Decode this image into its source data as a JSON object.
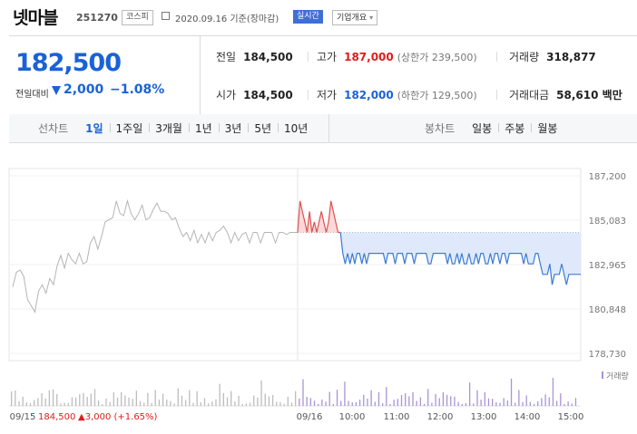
{
  "header": {
    "stock_name": "넷마블",
    "stock_code": "251270",
    "market": "코스피",
    "date_text": "2020.09.16 기준(장마감)",
    "realtime_label": "실시간",
    "company_info_label": "기업개요",
    "dropdown_caret": "▾"
  },
  "summary": {
    "price": "182,500",
    "compare_label": "전일대비",
    "change": "2,000",
    "change_pct": "−1.08%",
    "down_color": "#1a62d6",
    "up_color": "#e21b1b",
    "items": {
      "prev_close": {
        "label": "전일",
        "value": "184,500"
      },
      "high": {
        "label": "고가",
        "value": "187,000",
        "sub": "(상한가 239,500)"
      },
      "volume": {
        "label": "거래량",
        "value": "318,877"
      },
      "open": {
        "label": "시가",
        "value": "184,500"
      },
      "low": {
        "label": "저가",
        "value": "182,000",
        "sub": "(하한가 129,500)"
      },
      "trade_value": {
        "label": "거래대금",
        "value": "58,610 백만"
      }
    }
  },
  "period_bar": {
    "line_label": "선차트",
    "line_periods": [
      "1일",
      "1주일",
      "3개월",
      "1년",
      "3년",
      "5년",
      "10년"
    ],
    "line_selected": "1일",
    "candle_label": "봉차트",
    "candle_periods": [
      "일봉",
      "주봉",
      "월봉"
    ]
  },
  "chart_data": {
    "type": "line",
    "y_ticks": [
      "187,200",
      "185,083",
      "182,965",
      "180,848",
      "178,730"
    ],
    "ylim": [
      178730,
      187200
    ],
    "x_ticks": [
      "09/15",
      "09/16",
      "10:00",
      "11:00",
      "12:00",
      "13:00",
      "14:00",
      "15:00"
    ],
    "prev_close": 184500,
    "prev_day_series": [
      181900,
      182600,
      182700,
      182400,
      181300,
      181000,
      180700,
      181700,
      182000,
      181600,
      182300,
      182000,
      182900,
      183400,
      182800,
      183500,
      183200,
      183000,
      183500,
      183000,
      183100,
      184000,
      184300,
      183700,
      184300,
      185000,
      185100,
      185200,
      186000,
      185400,
      185300,
      186000,
      185400,
      185100,
      185400,
      185800,
      185100,
      185200,
      185600,
      185900,
      185500,
      185500,
      185400,
      185100,
      185200,
      184700,
      184300,
      184500,
      184100,
      184600,
      184000,
      184400,
      184000,
      184500,
      184100,
      184500,
      184600,
      184800,
      184500,
      184000,
      184500,
      184100,
      184400,
      184500,
      184000,
      184500,
      184500,
      184000,
      184500,
      184500,
      184500,
      184000,
      184500,
      184500,
      184400,
      184500,
      184500,
      184500
    ],
    "today_series": [
      184500,
      186000,
      185500,
      185000,
      184500,
      185500,
      184500,
      185000,
      184500,
      185000,
      185500,
      185000,
      184500,
      185000,
      186000,
      185500,
      185000,
      184500,
      184500,
      183500,
      183000,
      183500,
      183000,
      183500,
      183000,
      183500,
      183500,
      183000,
      183500,
      183000,
      183500,
      183500,
      183500,
      183500,
      183500,
      183500,
      183500,
      183000,
      183500,
      183500,
      183500,
      183000,
      183500,
      183500,
      183500,
      183000,
      183500,
      183500,
      183500,
      183000,
      183500,
      183500,
      183500,
      183500,
      183500,
      183000,
      183000,
      183500,
      183500,
      183500,
      183500,
      183500,
      183500,
      183000,
      183500,
      183000,
      183000,
      183500,
      183000,
      183500,
      183000,
      183000,
      183500,
      183000,
      183000,
      183500,
      183000,
      183500,
      183500,
      183000,
      183000,
      183500,
      183000,
      183500,
      183500,
      183000,
      183500,
      183500,
      183000,
      183500,
      183500,
      183500,
      183500,
      183500,
      183500,
      183000,
      183500,
      183000,
      183000,
      183000,
      183500,
      183500,
      183000,
      182500,
      182500,
      182500,
      183000,
      182000,
      182500,
      182500,
      182500,
      183000,
      182500,
      182000,
      182500,
      182500,
      182500,
      182500,
      182500,
      182500
    ],
    "volume_legend": "거래량",
    "prev_close_text": "184,500",
    "prev_change_text": "▲3,000 (+1.65%)",
    "line_color_up": "#e05050",
    "line_color_down": "#3a7bd5",
    "line_color_prev": "#b5b5b5"
  }
}
